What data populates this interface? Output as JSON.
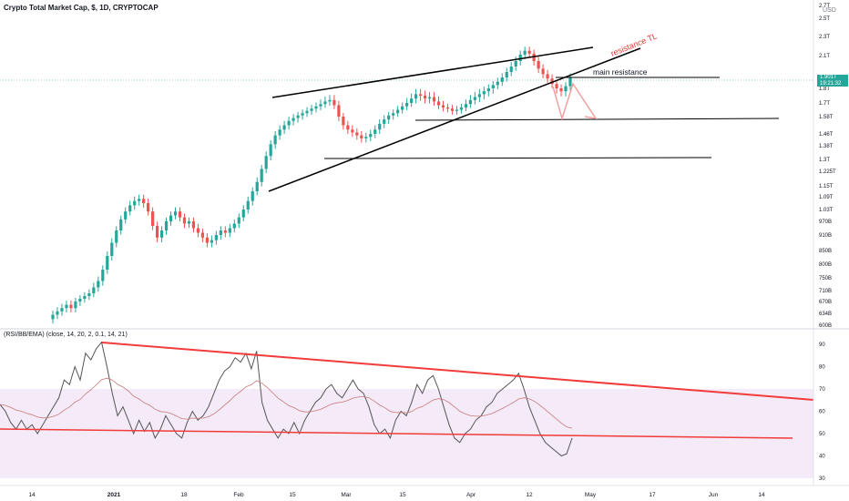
{
  "chart_data": [
    {
      "type": "candlestick",
      "title": "Crypto Total Market Cap, $, 1D, CRYPTOCAP",
      "unit": "USD",
      "price_axis_ticks": [
        "2.7T",
        "2.5T",
        "2.3T",
        "2.1T",
        "1.9T",
        "1.8T",
        "1.7T",
        "1.58T",
        "1.46T",
        "1.38T",
        "1.3T",
        "1.225T",
        "1.15T",
        "1.09T",
        "1.03T",
        "970B",
        "910B",
        "850B",
        "800B",
        "750B",
        "710B",
        "670B",
        "634B",
        "600B"
      ],
      "last_price": "1.901T",
      "countdown": "19:21:32",
      "annotations": [
        "resistance TL",
        "main resistance"
      ],
      "x_axis_ticks": [
        "14",
        "2021",
        "18",
        "Feb",
        "15",
        "Mar",
        "15",
        "Apr",
        "12",
        "May",
        "17",
        "Jun",
        "14"
      ],
      "close_series": [
        0.63,
        0.64,
        0.65,
        0.66,
        0.65,
        0.67,
        0.68,
        0.69,
        0.7,
        0.72,
        0.74,
        0.78,
        0.83,
        0.88,
        0.93,
        0.98,
        1.02,
        1.05,
        1.07,
        1.08,
        1.06,
        1.02,
        0.95,
        0.9,
        0.93,
        0.97,
        1.0,
        1.02,
        0.99,
        0.96,
        0.97,
        0.94,
        0.92,
        0.9,
        0.88,
        0.89,
        0.91,
        0.93,
        0.92,
        0.94,
        0.96,
        0.99,
        1.03,
        1.07,
        1.12,
        1.17,
        1.24,
        1.32,
        1.39,
        1.45,
        1.49,
        1.52,
        1.55,
        1.57,
        1.59,
        1.61,
        1.63,
        1.65,
        1.67,
        1.69,
        1.71,
        1.72,
        1.68,
        1.58,
        1.52,
        1.49,
        1.47,
        1.45,
        1.43,
        1.44,
        1.46,
        1.49,
        1.53,
        1.56,
        1.59,
        1.61,
        1.64,
        1.67,
        1.7,
        1.73,
        1.76,
        1.75,
        1.73,
        1.74,
        1.71,
        1.68,
        1.66,
        1.65,
        1.63,
        1.64,
        1.66,
        1.69,
        1.72,
        1.74,
        1.76,
        1.78,
        1.8,
        1.83,
        1.86,
        1.9,
        1.95,
        2.0,
        2.05,
        2.11,
        2.15,
        2.12,
        2.05,
        1.98,
        1.93,
        1.89,
        1.84,
        1.8,
        1.78,
        1.82,
        1.9
      ]
    },
    {
      "type": "line",
      "title": "(RSI/BB/EMA) (close, 14, 20, 2, 0.1, 14, 21)",
      "y_axis_ticks": [
        30,
        40,
        50,
        60,
        70,
        80,
        90
      ],
      "band": [
        30,
        70
      ],
      "rsi": [
        63,
        60,
        55,
        52,
        56,
        52,
        54,
        50,
        54,
        58,
        62,
        66,
        74,
        72,
        80,
        74,
        86,
        83,
        88,
        91,
        80,
        68,
        58,
        62,
        56,
        50,
        56,
        51,
        55,
        48,
        52,
        58,
        54,
        50,
        48,
        55,
        60,
        56,
        58,
        62,
        68,
        74,
        78,
        80,
        84,
        82,
        86,
        79,
        87,
        64,
        56,
        52,
        48,
        52,
        50,
        55,
        50,
        56,
        60,
        64,
        66,
        70,
        72,
        68,
        66,
        70,
        74,
        70,
        68,
        62,
        54,
        50,
        52,
        48,
        56,
        60,
        58,
        64,
        72,
        68,
        74,
        76,
        70,
        62,
        54,
        48,
        46,
        50,
        52,
        56,
        58,
        62,
        64,
        68,
        70,
        72,
        74,
        77,
        70,
        62,
        56,
        50,
        46,
        44,
        42,
        40,
        41,
        48
      ]
    }
  ]
}
